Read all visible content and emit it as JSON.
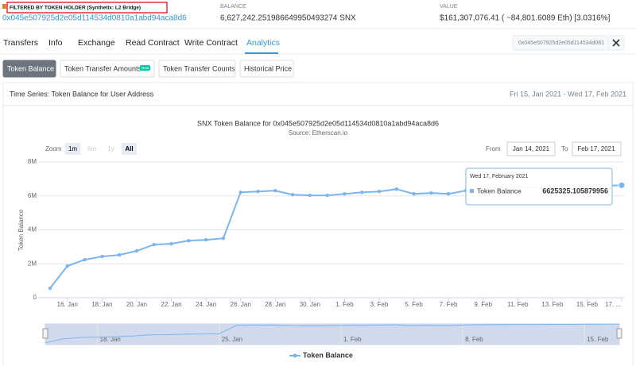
{
  "header": {
    "filter_label": "FILTERED BY TOKEN HOLDER (Synthetix: L2 Bridge)",
    "address": "0x045e507925d2e05d114534d0810a1abd94aca8d6",
    "balance_label": "BALANCE",
    "balance": "6,627,242.251986649950493274 SNX",
    "value_label": "VALUE",
    "value": "$161,307,076.41 ( ~84,801.6089 Eth) [3.0316%]"
  },
  "tabs": [
    "Transfers",
    "Info",
    "Exchange",
    "Read Contract",
    "Write Contract",
    "Analytics"
  ],
  "search": "0x045e507925d2e05d114534d0810a1abd94aca8d6",
  "subtabs": [
    "Token Balance",
    "Token Transfer Amounts",
    "Token Transfer Counts",
    "Historical Price"
  ],
  "new_badge": "New",
  "panel": {
    "title": "Time Series: Token Balance for User Address",
    "range": "Fri 15, Jan 2021 - Wed 17, Feb 2021"
  },
  "chart_data": {
    "type": "line",
    "title": "SNX Token Balance for 0x045e507925d2e05d114534d0810a1abd94aca8d6",
    "subtitle": "Source: Etherscan.io",
    "zoom_label": "Zoom",
    "zoom_buttons": [
      "1m",
      "6m",
      "1y",
      "All"
    ],
    "from_label": "From",
    "from": "Jan 14, 2021",
    "to_label": "To",
    "to": "Feb 17, 2021",
    "y_label": "Token Balance",
    "x": [
      "2021-01-15",
      "2021-01-16",
      "2021-01-17",
      "2021-01-18",
      "2021-01-19",
      "2021-01-20",
      "2021-01-21",
      "2021-01-22",
      "2021-01-23",
      "2021-01-24",
      "2021-01-25",
      "2021-01-26",
      "2021-01-27",
      "2021-01-28",
      "2021-01-29",
      "2021-01-30",
      "2021-01-31",
      "2021-02-01",
      "2021-02-02",
      "2021-02-03",
      "2021-02-04",
      "2021-02-05",
      "2021-02-06",
      "2021-02-07",
      "2021-02-08",
      "2021-02-09",
      "2021-02-10",
      "2021-02-11",
      "2021-02-12",
      "2021-02-13",
      "2021-02-14",
      "2021-02-15",
      "2021-02-16",
      "2021-02-17"
    ],
    "xlim": [
      "2021-01-15",
      "2021-02-17"
    ],
    "xticks": [
      {
        "value": "2021-01-16",
        "label": "16. Jan"
      },
      {
        "value": "2021-01-18",
        "label": "18. Jan"
      },
      {
        "value": "2021-01-20",
        "label": "20. Jan"
      },
      {
        "value": "2021-01-22",
        "label": "22. Jan"
      },
      {
        "value": "2021-01-24",
        "label": "24. Jan"
      },
      {
        "value": "2021-01-26",
        "label": "26. Jan"
      },
      {
        "value": "2021-01-28",
        "label": "28. Jan"
      },
      {
        "value": "2021-01-30",
        "label": "30. Jan"
      },
      {
        "value": "2021-02-01",
        "label": "1. Feb"
      },
      {
        "value": "2021-02-03",
        "label": "3. Feb"
      },
      {
        "value": "2021-02-05",
        "label": "5. Feb"
      },
      {
        "value": "2021-02-07",
        "label": "7. Feb"
      },
      {
        "value": "2021-02-09",
        "label": "9. Feb"
      },
      {
        "value": "2021-02-11",
        "label": "11. Feb"
      },
      {
        "value": "2021-02-13",
        "label": "13. Feb"
      },
      {
        "value": "2021-02-15",
        "label": "15. Feb"
      },
      {
        "value": "2021-02-17",
        "label": "17. ..."
      }
    ],
    "ylim": [
      0,
      8000000
    ],
    "yticks": [
      0,
      {
        "value": 2000000,
        "label": "2M"
      },
      {
        "value": 4000000,
        "label": "4M"
      },
      {
        "value": 6000000,
        "label": "6M"
      },
      {
        "value": 8000000,
        "label": "8M"
      }
    ],
    "grid": true,
    "series": [
      {
        "name": "Token Balance",
        "color": "#7cb5ec",
        "values": [
          560000,
          1870000,
          2240000,
          2430000,
          2520000,
          2760000,
          3130000,
          3180000,
          3360000,
          3410000,
          3500000,
          6210000,
          6260000,
          6310000,
          6070000,
          6030000,
          6030000,
          6120000,
          6210000,
          6260000,
          6400000,
          6120000,
          6170000,
          6120000,
          6310000,
          6400000,
          6450000,
          6500000,
          6500000,
          6550000,
          6550000,
          6580000,
          6600000,
          6625325.105879956
        ]
      }
    ],
    "tooltip_date": "Wed 17, February 2021",
    "navigator_ticks": [
      {
        "value": "2021-01-18",
        "label": "18. Jan"
      },
      {
        "value": "2021-01-25",
        "label": "25. Jan"
      },
      {
        "value": "2021-02-01",
        "label": "1. Feb"
      },
      {
        "value": "2021-02-08",
        "label": "8. Feb"
      },
      {
        "value": "2021-02-15",
        "label": "15. Feb"
      }
    ]
  }
}
